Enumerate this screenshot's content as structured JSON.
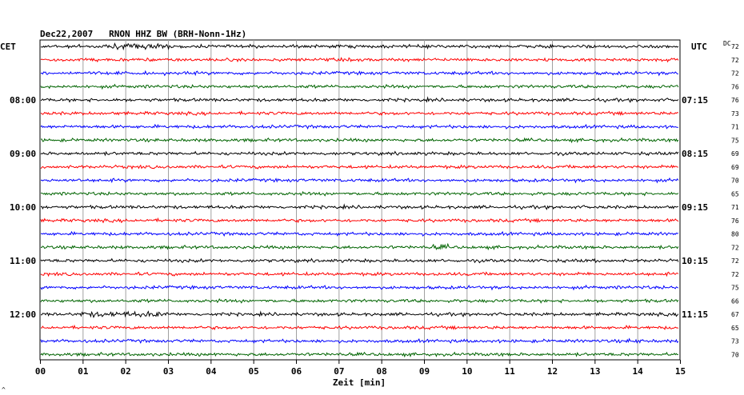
{
  "header": {
    "title": "Dec22,2007   RNON HHZ BW (BRH-Nonn-1Hz)",
    "left_tz": "CET",
    "right_tz": "UTC",
    "dc_label": "DC",
    "corner_mark": "^"
  },
  "chart_data": {
    "type": "line",
    "title": "Dec22,2007   RNON HHZ BW (BRH-Nonn-1Hz)",
    "xlabel": "Zeit [min]",
    "xlim": [
      0,
      15
    ],
    "x_ticks": [
      "00",
      "01",
      "02",
      "03",
      "04",
      "05",
      "06",
      "07",
      "08",
      "09",
      "10",
      "11",
      "12",
      "13",
      "14",
      "15"
    ],
    "grid": true,
    "trace_colors": [
      "#000000",
      "#ff0000",
      "#0000ff",
      "#006400"
    ],
    "left_hour_labels": [
      {
        "trace": 4,
        "label": "08:00"
      },
      {
        "trace": 8,
        "label": "09:00"
      },
      {
        "trace": 12,
        "label": "10:00"
      },
      {
        "trace": 16,
        "label": "11:00"
      },
      {
        "trace": 20,
        "label": "12:00"
      }
    ],
    "right_hour_labels": [
      {
        "trace": 4,
        "label": "07:15"
      },
      {
        "trace": 8,
        "label": "08:15"
      },
      {
        "trace": 12,
        "label": "09:15"
      },
      {
        "trace": 16,
        "label": "10:15"
      },
      {
        "trace": 20,
        "label": "11:15"
      }
    ],
    "dc_values": [
      "72",
      "72",
      "72",
      "76",
      "76",
      "73",
      "71",
      "75",
      "69",
      "69",
      "70",
      "65",
      "71",
      "76",
      "80",
      "72",
      "72",
      "72",
      "75",
      "66",
      "67",
      "65",
      "73",
      "70"
    ]
  }
}
